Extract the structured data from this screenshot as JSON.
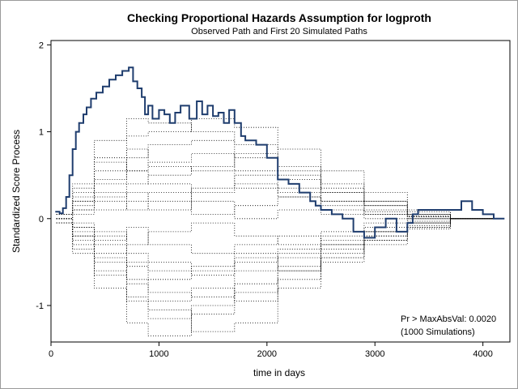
{
  "chart_data": {
    "type": "line",
    "title": "Checking Proportional Hazards Assumption for logproth",
    "subtitle": "Observed Path and First 20 Simulated Paths",
    "xlabel": "time in days",
    "ylabel": "Standardized Score Process",
    "xlim": [
      0,
      4250
    ],
    "ylim": [
      -1.42,
      2.05
    ],
    "xticks": [
      0,
      1000,
      2000,
      3000,
      4000
    ],
    "xtick_labels": [
      "0",
      "1000",
      "2000",
      "3000",
      "4000"
    ],
    "yticks": [
      -1,
      0,
      1,
      2
    ],
    "ytick_labels": [
      "-1",
      "0",
      "1",
      "2"
    ],
    "grid": false,
    "annotation": [
      "Pr > MaxAbsVal: 0.0020",
      "(1000 Simulations)"
    ],
    "colors": {
      "observed": "#1f3d6e",
      "simulated": "#000000"
    },
    "observed": {
      "x": [
        40,
        80,
        110,
        140,
        170,
        200,
        230,
        260,
        300,
        330,
        370,
        420,
        480,
        540,
        600,
        660,
        720,
        760,
        800,
        840,
        870,
        900,
        940,
        1000,
        1050,
        1100,
        1150,
        1200,
        1280,
        1350,
        1400,
        1450,
        1500,
        1550,
        1600,
        1650,
        1700,
        1760,
        1800,
        1900,
        2000,
        2100,
        2200,
        2300,
        2400,
        2450,
        2500,
        2600,
        2700,
        2800,
        2900,
        3000,
        3100,
        3200,
        3300,
        3350,
        3400,
        3500,
        3700,
        3800,
        3900,
        4000,
        4100,
        4200
      ],
      "y": [
        0.08,
        0.06,
        0.12,
        0.25,
        0.5,
        0.8,
        1.0,
        1.1,
        1.2,
        1.28,
        1.38,
        1.45,
        1.52,
        1.6,
        1.65,
        1.7,
        1.74,
        1.58,
        1.5,
        1.4,
        1.2,
        1.3,
        1.15,
        1.25,
        1.2,
        1.1,
        1.22,
        1.3,
        1.15,
        1.35,
        1.2,
        1.3,
        1.18,
        1.22,
        1.1,
        1.25,
        1.1,
        0.95,
        0.9,
        0.85,
        0.7,
        0.45,
        0.4,
        0.3,
        0.2,
        0.15,
        0.1,
        0.05,
        0.0,
        -0.15,
        -0.22,
        -0.1,
        0.0,
        -0.15,
        -0.05,
        0.05,
        0.1,
        0.1,
        0.1,
        0.2,
        0.1,
        0.05,
        0.0,
        0.0
      ]
    },
    "simulated": [
      {
        "x": [
          50,
          200,
          400,
          700,
          900,
          1300,
          1700,
          2100,
          2500,
          2900,
          3300,
          3700,
          4150
        ],
        "y": [
          0.05,
          0.4,
          0.9,
          1.15,
          1.1,
          1.0,
          0.85,
          0.55,
          0.35,
          0.15,
          0.05,
          0.0,
          0.0
        ]
      },
      {
        "x": [
          50,
          200,
          400,
          700,
          900,
          1300,
          1700,
          2100,
          2500,
          2900,
          3300,
          3700,
          4150
        ],
        "y": [
          0.0,
          -0.4,
          -0.8,
          -1.2,
          -1.35,
          -1.1,
          -0.85,
          -0.6,
          -0.4,
          -0.2,
          -0.05,
          0.0,
          0.0
        ]
      },
      {
        "x": [
          50,
          200,
          400,
          700,
          900,
          1300,
          1700,
          2100,
          2500,
          2900,
          3300,
          3700,
          4150
        ],
        "y": [
          0.05,
          0.3,
          0.7,
          0.95,
          1.0,
          1.15,
          1.05,
          0.8,
          0.55,
          0.3,
          0.1,
          0.0,
          0.0
        ]
      },
      {
        "x": [
          50,
          200,
          400,
          700,
          900,
          1300,
          1700,
          2100,
          2500,
          2900,
          3300,
          3700,
          4150
        ],
        "y": [
          -0.05,
          -0.3,
          -0.6,
          -0.9,
          -1.05,
          -1.3,
          -1.2,
          -0.8,
          -0.5,
          -0.25,
          -0.1,
          0.0,
          0.0
        ]
      },
      {
        "x": [
          50,
          200,
          400,
          700,
          900,
          1300,
          1700,
          2100,
          2500,
          2900,
          3300,
          3700,
          4150
        ],
        "y": [
          0.0,
          0.2,
          0.45,
          0.7,
          0.85,
          0.9,
          0.7,
          0.5,
          0.3,
          0.2,
          0.08,
          0.0,
          0.0
        ]
      },
      {
        "x": [
          50,
          200,
          400,
          700,
          900,
          1300,
          1700,
          2100,
          2500,
          2900,
          3300,
          3700,
          4150
        ],
        "y": [
          0.0,
          -0.2,
          -0.45,
          -0.7,
          -0.85,
          -0.9,
          -0.75,
          -0.55,
          -0.35,
          -0.2,
          -0.08,
          0.0,
          0.0
        ]
      },
      {
        "x": [
          50,
          200,
          400,
          700,
          900,
          1300,
          1700,
          2100,
          2500,
          2900,
          3300,
          3700,
          4150
        ],
        "y": [
          0.05,
          0.1,
          0.25,
          0.4,
          0.5,
          0.6,
          0.75,
          0.6,
          0.4,
          0.2,
          0.05,
          0.0,
          0.0
        ]
      },
      {
        "x": [
          50,
          200,
          400,
          700,
          900,
          1300,
          1700,
          2100,
          2500,
          2900,
          3300,
          3700,
          4150
        ],
        "y": [
          -0.05,
          -0.1,
          -0.3,
          -0.5,
          -0.6,
          -0.55,
          -0.45,
          -0.6,
          -0.45,
          -0.25,
          -0.1,
          0.0,
          0.0
        ]
      },
      {
        "x": [
          50,
          200,
          400,
          700,
          900,
          1300,
          1700,
          2100,
          2500,
          2900,
          3300,
          3700,
          4150
        ],
        "y": [
          0.0,
          0.15,
          0.3,
          0.2,
          0.1,
          0.35,
          0.5,
          0.45,
          0.3,
          0.15,
          0.05,
          0.0,
          0.0
        ]
      },
      {
        "x": [
          50,
          200,
          400,
          700,
          900,
          1300,
          1700,
          2100,
          2500,
          2900,
          3300,
          3700,
          4150
        ],
        "y": [
          0.0,
          -0.15,
          -0.25,
          -0.1,
          -0.3,
          -0.4,
          -0.3,
          -0.2,
          -0.25,
          -0.15,
          -0.05,
          0.0,
          0.0
        ]
      },
      {
        "x": [
          50,
          200,
          400,
          700,
          900,
          1300,
          1700,
          2100,
          2500,
          2900,
          3300,
          3700,
          4150
        ],
        "y": [
          0.05,
          0.25,
          0.55,
          0.8,
          0.6,
          0.55,
          0.35,
          0.25,
          0.1,
          0.05,
          0.02,
          0.0,
          0.0
        ]
      },
      {
        "x": [
          50,
          200,
          400,
          700,
          900,
          1300,
          1700,
          2100,
          2500,
          2900,
          3300,
          3700,
          4150
        ],
        "y": [
          -0.05,
          -0.25,
          -0.5,
          -0.75,
          -0.95,
          -0.8,
          -0.95,
          -0.7,
          -0.45,
          -0.3,
          -0.12,
          0.0,
          0.0
        ]
      },
      {
        "x": [
          50,
          200,
          400,
          700,
          900,
          1300,
          1700,
          2100,
          2500,
          2900,
          3300,
          3700,
          4150
        ],
        "y": [
          0.0,
          0.05,
          0.1,
          0.3,
          0.2,
          0.05,
          0.15,
          0.25,
          0.15,
          0.05,
          0.0,
          0.0,
          0.0
        ]
      },
      {
        "x": [
          50,
          200,
          400,
          700,
          900,
          1300,
          1700,
          2100,
          2500,
          2900,
          3300,
          3700,
          4150
        ],
        "y": [
          0.0,
          -0.05,
          -0.15,
          -0.3,
          -0.15,
          -0.05,
          -0.2,
          -0.3,
          -0.15,
          -0.05,
          0.0,
          0.0,
          0.0
        ]
      },
      {
        "x": [
          50,
          200,
          400,
          700,
          900,
          1300,
          1700,
          2100,
          2500,
          2900,
          3300,
          3700,
          4150
        ],
        "y": [
          0.05,
          0.35,
          0.65,
          0.55,
          0.65,
          0.75,
          0.55,
          0.35,
          0.2,
          0.1,
          0.03,
          0.0,
          0.0
        ]
      },
      {
        "x": [
          50,
          200,
          400,
          700,
          900,
          1300,
          1700,
          2100,
          2500,
          2900,
          3300,
          3700,
          4150
        ],
        "y": [
          -0.05,
          -0.35,
          -0.65,
          -0.95,
          -1.15,
          -1.0,
          -0.6,
          -0.4,
          -0.3,
          -0.15,
          -0.05,
          0.0,
          0.0
        ]
      },
      {
        "x": [
          50,
          200,
          400,
          700,
          900,
          1300,
          1700,
          2100,
          2500,
          2900,
          3300,
          3700,
          4150
        ],
        "y": [
          0.0,
          0.1,
          0.2,
          0.1,
          0.3,
          0.2,
          0.0,
          0.1,
          0.05,
          0.0,
          0.0,
          0.0,
          0.0
        ]
      },
      {
        "x": [
          50,
          200,
          400,
          700,
          900,
          1300,
          1700,
          2100,
          2500,
          2900,
          3300,
          3700,
          4150
        ],
        "y": [
          0.0,
          -0.1,
          -0.2,
          -0.4,
          -0.5,
          -0.65,
          -0.5,
          -0.35,
          -0.2,
          -0.1,
          -0.03,
          0.0,
          0.0
        ]
      },
      {
        "x": [
          50,
          200,
          400,
          700,
          900,
          1300,
          1700,
          2100,
          2500,
          2900,
          3300,
          3700,
          4150
        ],
        "y": [
          0.05,
          0.2,
          0.4,
          0.55,
          0.4,
          0.3,
          0.4,
          0.3,
          0.2,
          0.08,
          0.02,
          0.0,
          0.0
        ]
      },
      {
        "x": [
          50,
          200,
          400,
          700,
          900,
          1300,
          1700,
          2100,
          2500,
          2900,
          3300,
          3700,
          4150
        ],
        "y": [
          -0.05,
          -0.2,
          -0.4,
          -0.55,
          -0.7,
          -0.6,
          -0.4,
          -0.45,
          -0.3,
          -0.15,
          -0.05,
          0.0,
          0.0
        ]
      }
    ]
  }
}
